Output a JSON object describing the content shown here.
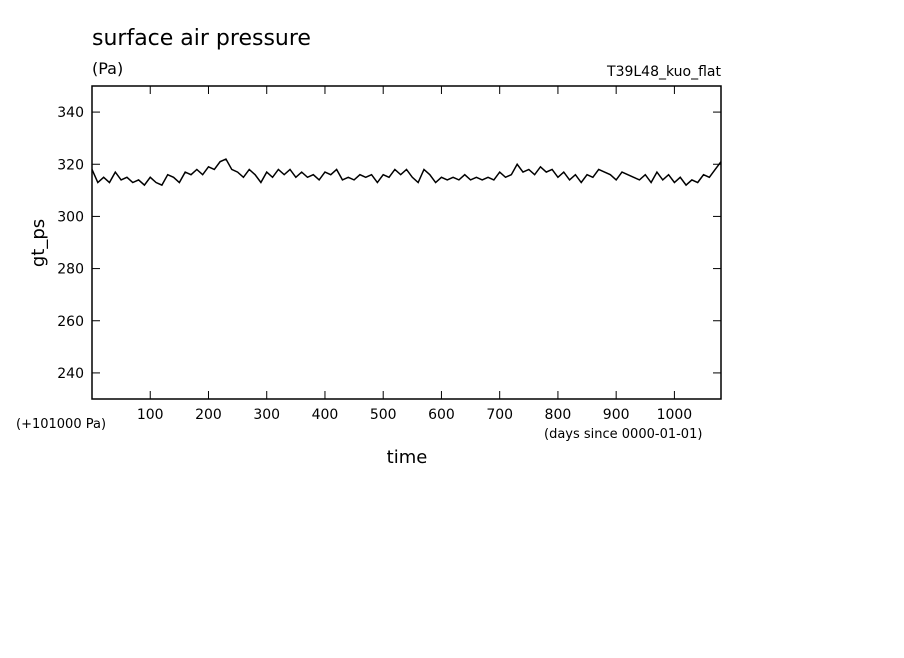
{
  "chart_data": {
    "type": "line",
    "title": "surface air pressure",
    "units": "(Pa)",
    "run_label": "T39L48_kuo_flat",
    "ylabel": "gt_ps",
    "xlabel": "time",
    "y_offset_label": "(+101000 Pa)",
    "x_units_label": "(days since 0000-01-01)",
    "color": "#000000",
    "xlim": [
      0,
      1080
    ],
    "ylim": [
      230,
      350
    ],
    "xticks": [
      100,
      200,
      300,
      400,
      500,
      600,
      700,
      800,
      900,
      1000
    ],
    "yticks": [
      240,
      260,
      280,
      300,
      320,
      340
    ],
    "x": [
      0,
      10,
      20,
      30,
      40,
      50,
      60,
      70,
      80,
      90,
      100,
      110,
      120,
      130,
      140,
      150,
      160,
      170,
      180,
      190,
      200,
      210,
      220,
      230,
      240,
      250,
      260,
      270,
      280,
      290,
      300,
      310,
      320,
      330,
      340,
      350,
      360,
      370,
      380,
      390,
      400,
      410,
      420,
      430,
      440,
      450,
      460,
      470,
      480,
      490,
      500,
      510,
      520,
      530,
      540,
      550,
      560,
      570,
      580,
      590,
      600,
      610,
      620,
      630,
      640,
      650,
      660,
      670,
      680,
      690,
      700,
      710,
      720,
      730,
      740,
      750,
      760,
      770,
      780,
      790,
      800,
      810,
      820,
      830,
      840,
      850,
      860,
      870,
      880,
      890,
      900,
      910,
      920,
      930,
      940,
      950,
      960,
      970,
      980,
      990,
      1000,
      1010,
      1020,
      1030,
      1040,
      1050,
      1060,
      1070,
      1080
    ],
    "values": [
      318,
      313,
      315,
      313,
      317,
      314,
      315,
      313,
      314,
      312,
      315,
      313,
      312,
      316,
      315,
      313,
      317,
      316,
      318,
      316,
      319,
      318,
      321,
      322,
      318,
      317,
      315,
      318,
      316,
      313,
      317,
      315,
      318,
      316,
      318,
      315,
      317,
      315,
      316,
      314,
      317,
      316,
      318,
      314,
      315,
      314,
      316,
      315,
      316,
      313,
      316,
      315,
      318,
      316,
      318,
      315,
      313,
      318,
      316,
      313,
      315,
      314,
      315,
      314,
      316,
      314,
      315,
      314,
      315,
      314,
      317,
      315,
      316,
      320,
      317,
      318,
      316,
      319,
      317,
      318,
      315,
      317,
      314,
      316,
      313,
      316,
      315,
      318,
      317,
      316,
      314,
      317,
      316,
      315,
      314,
      316,
      313,
      317,
      314,
      316,
      313,
      315,
      312,
      314,
      313,
      316,
      315,
      318,
      321
    ]
  }
}
